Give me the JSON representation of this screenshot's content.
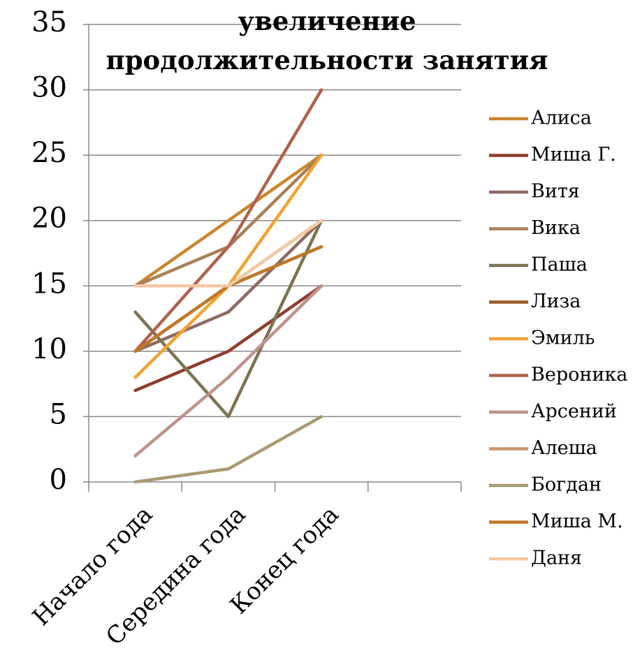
{
  "chart_data": {
    "type": "line",
    "title": "увеличение продолжительности занятия",
    "categories": [
      "Начало года",
      "Середина года",
      "Конец года",
      null
    ],
    "ylim": [
      0,
      35
    ],
    "yticks": [
      0,
      5,
      10,
      15,
      20,
      25,
      30,
      35
    ],
    "grid": true,
    "legend": "right",
    "series": [
      {
        "name": "Алиса",
        "color": "#c8862c",
        "values": [
          15,
          20,
          25,
          null
        ]
      },
      {
        "name": "Миша Г.",
        "color": "#8e3e2e",
        "values": [
          7,
          10,
          15,
          null
        ]
      },
      {
        "name": "Витя",
        "color": "#8f6a62",
        "values": [
          10,
          13,
          20,
          null
        ]
      },
      {
        "name": "Вика",
        "color": "#a88058",
        "values": [
          15,
          18,
          25,
          null
        ]
      },
      {
        "name": "Паша",
        "color": "#7b7452",
        "values": [
          13,
          5,
          20,
          null
        ]
      },
      {
        "name": "Лиза",
        "color": "#9a5820",
        "values": [
          10,
          15,
          18,
          null
        ]
      },
      {
        "name": "Эмиль",
        "color": "#f0a232",
        "values": [
          8,
          15,
          25,
          null
        ]
      },
      {
        "name": "Вероника",
        "color": "#b0624c",
        "values": [
          10,
          18,
          30,
          null
        ]
      },
      {
        "name": "Арсений",
        "color": "#c0928a",
        "values": [
          2,
          8,
          15,
          null
        ]
      },
      {
        "name": "Алеша",
        "color": "#c9966a",
        "values": [
          15,
          15,
          20,
          null
        ]
      },
      {
        "name": "Богдан",
        "color": "#a89b72",
        "values": [
          0,
          1,
          5,
          null
        ]
      },
      {
        "name": "Миша М.",
        "color": "#c07828",
        "values": [
          10,
          15,
          18,
          null
        ]
      },
      {
        "name": "Даня",
        "color": "#f5c8a2",
        "values": [
          15,
          15,
          20,
          null
        ]
      }
    ]
  }
}
